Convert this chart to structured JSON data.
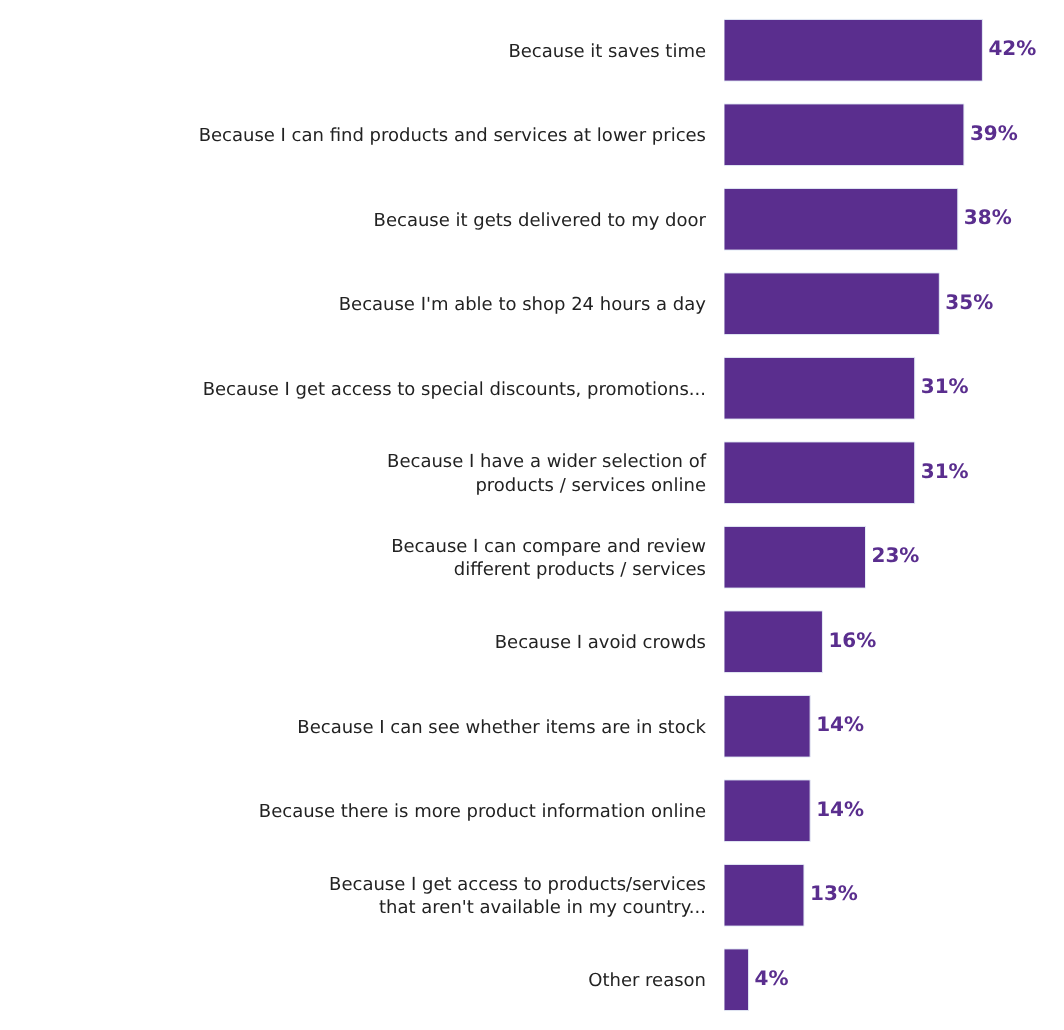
{
  "chart_data": {
    "type": "bar",
    "orientation": "horizontal",
    "categories": [
      "Because it saves time",
      "Because I can find products and services at lower prices",
      "Because it gets delivered to my door",
      "Because I'm able to shop 24 hours a day",
      "Because I get access to special discounts, promotions...",
      "Because I have a wider selection of\nproducts / services online",
      "Because I can compare and review\ndifferent products / services",
      "Because I avoid crowds",
      "Because I can see whether items are in stock",
      "Because there is more product information online",
      "Because I get access to products/services\nthat aren't available in my country...",
      "Other reason"
    ],
    "values": [
      42,
      39,
      38,
      35,
      31,
      31,
      23,
      16,
      14,
      14,
      13,
      4
    ],
    "value_labels": [
      "42%",
      "39%",
      "38%",
      "35%",
      "31%",
      "31%",
      "23%",
      "16%",
      "14%",
      "14%",
      "13%",
      "4%"
    ],
    "color": "#5a2e8e",
    "legend": false
  }
}
